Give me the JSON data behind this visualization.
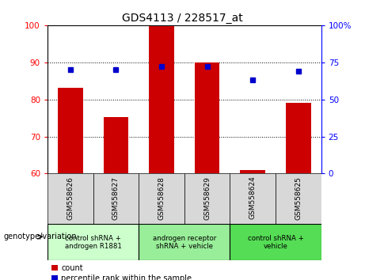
{
  "title": "GDS4113 / 228517_at",
  "samples": [
    "GSM558626",
    "GSM558627",
    "GSM558628",
    "GSM558629",
    "GSM558624",
    "GSM558625"
  ],
  "counts": [
    83.2,
    75.2,
    99.8,
    90.0,
    61.0,
    79.0
  ],
  "percentiles": [
    70.0,
    70.0,
    72.0,
    72.0,
    63.0,
    69.0
  ],
  "bar_color": "#cc0000",
  "dot_color": "#0000cc",
  "ylim_left": [
    60,
    100
  ],
  "ylim_right": [
    0,
    100
  ],
  "yticks_left": [
    60,
    70,
    80,
    90,
    100
  ],
  "yticks_right": [
    0,
    25,
    50,
    75,
    100
  ],
  "ytick_labels_right": [
    "0",
    "25",
    "50",
    "75",
    "100%"
  ],
  "groups": [
    {
      "label": "control shRNA +\nandrogen R1881",
      "start": 0,
      "end": 2,
      "color": "#ccffcc"
    },
    {
      "label": "androgen receptor\nshRNA + vehicle",
      "start": 2,
      "end": 4,
      "color": "#99ee99"
    },
    {
      "label": "control shRNA +\nvehicle",
      "start": 4,
      "end": 6,
      "color": "#55dd55"
    }
  ],
  "tick_bg_color": "#d8d8d8",
  "legend_count_label": "count",
  "legend_percentile_label": "percentile rank within the sample",
  "genotype_label": "genotype/variation",
  "bar_width": 0.55,
  "figsize": [
    4.61,
    3.54
  ],
  "dpi": 100
}
